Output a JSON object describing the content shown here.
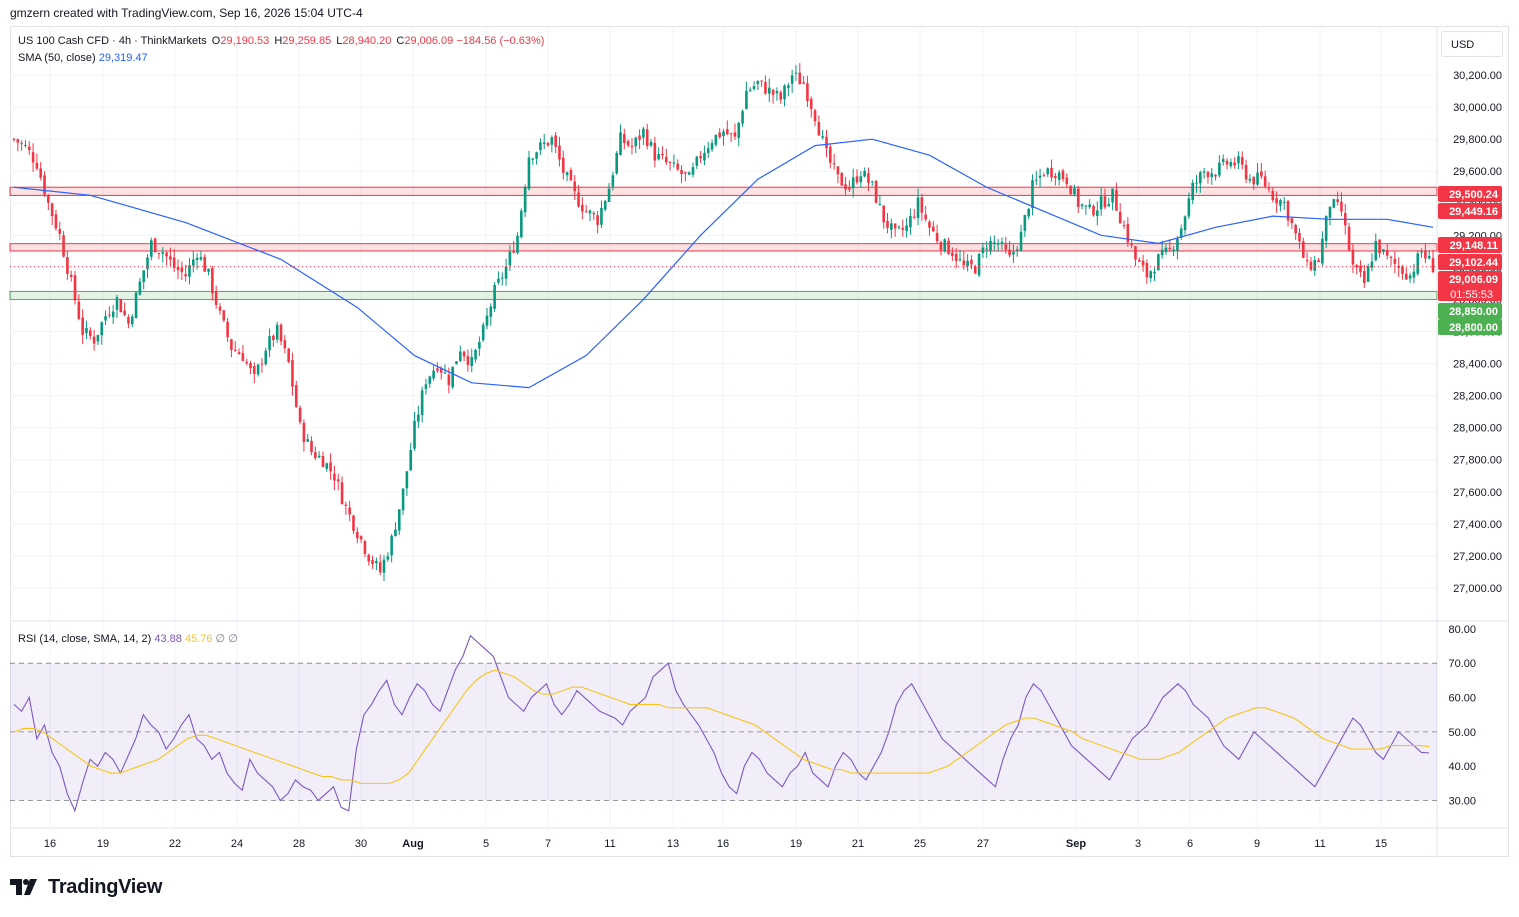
{
  "header": {
    "attribution": "gmzern created with TradingView.com, Sep 16, 2026 15:04 UTC-4"
  },
  "legend": {
    "symbol": "US 100 Cash CFD · 4h · ThinkMarkets",
    "open_label": "O",
    "open": "29,190.53",
    "high_label": "H",
    "high": "29,259.85",
    "low_label": "L",
    "low": "28,940.20",
    "close_label": "C",
    "close": "29,006.09",
    "change": "−184.56 (−0.63%)",
    "sma_label": "SMA (50, close)",
    "sma_value": "29,319.47"
  },
  "rsi_legend": {
    "label": "RSI (14, close, SMA, 14, 2)",
    "rsi": "43.88",
    "rsi_sma": "45.76",
    "extra1": "∅",
    "extra2": "∅"
  },
  "currency": "USD",
  "footer": {
    "brand": "TradingView",
    "logo_icon": "tradingview-logo-icon"
  },
  "colors": {
    "up": "#089981",
    "down": "#f23645",
    "sma": "#2962ff",
    "rsi": "#7e57c2",
    "rsi_sma": "#f7c51a",
    "zone_red": "#f23645",
    "zone_green": "#4caf50"
  },
  "chart_data": [
    {
      "type": "candlestick",
      "title": "US 100 Cash CFD · 4h · ThinkMarkets",
      "ylim": [
        26800,
        30500
      ],
      "y_ticks": [
        "30,200.00",
        "30,000.00",
        "29,800.00",
        "29,600.00",
        "29,400.00",
        "29,200.00",
        "29,000.00",
        "28,800.00",
        "28,600.00",
        "28,400.00",
        "28,200.00",
        "28,000.00",
        "27,800.00",
        "27,600.00",
        "27,400.00",
        "27,200.00",
        "27,000.00"
      ],
      "x_ticks": [
        "16",
        "19",
        "22",
        "24",
        "28",
        "30",
        "Aug",
        "5",
        "7",
        "11",
        "13",
        "16",
        "19",
        "21",
        "25",
        "27",
        "Sep",
        "3",
        "6",
        "9",
        "11",
        "15"
      ],
      "price_levels": [
        {
          "label": "29,500.24",
          "value": 29500.24,
          "color": "#f23645"
        },
        {
          "label": "29,449.16",
          "value": 29449.16,
          "color": "#f23645"
        },
        {
          "label": "29,148.11",
          "value": 29148.11,
          "color": "#f23645"
        },
        {
          "label": "29,102.44",
          "value": 29102.44,
          "color": "#f23645"
        },
        {
          "label": "29,006.09",
          "value": 29006.09,
          "color": "#f23645",
          "sub": "01:55:53"
        },
        {
          "label": "28,850.00",
          "value": 28850,
          "color": "#4caf50"
        },
        {
          "label": "28,800.00",
          "value": 28800,
          "color": "#4caf50"
        }
      ],
      "zones": [
        {
          "from": 29449.16,
          "to": 29500.24,
          "color": "#f23645"
        },
        {
          "from": 29102.44,
          "to": 29148.11,
          "color": "#f23645"
        },
        {
          "from": 28800,
          "to": 28850,
          "color": "#4caf50"
        }
      ],
      "close_path": [
        [
          0,
          29800
        ],
        [
          3,
          29750
        ],
        [
          6,
          29650
        ],
        [
          9,
          29400
        ],
        [
          12,
          29200
        ],
        [
          15,
          28900
        ],
        [
          18,
          28600
        ],
        [
          21,
          28550
        ],
        [
          24,
          28700
        ],
        [
          27,
          28800
        ],
        [
          30,
          28650
        ],
        [
          33,
          28900
        ],
        [
          36,
          29150
        ],
        [
          39,
          29100
        ],
        [
          42,
          29000
        ],
        [
          45,
          28950
        ],
        [
          48,
          29100
        ],
        [
          51,
          28950
        ],
        [
          54,
          28700
        ],
        [
          57,
          28500
        ],
        [
          60,
          28450
        ],
        [
          63,
          28300
        ],
        [
          66,
          28500
        ],
        [
          69,
          28600
        ],
        [
          72,
          28400
        ],
        [
          75,
          28000
        ],
        [
          78,
          27850
        ],
        [
          81,
          27800
        ],
        [
          84,
          27700
        ],
        [
          87,
          27500
        ],
        [
          90,
          27350
        ],
        [
          93,
          27200
        ],
        [
          96,
          27100
        ],
        [
          99,
          27300
        ],
        [
          102,
          27600
        ],
        [
          105,
          28000
        ],
        [
          108,
          28300
        ],
        [
          111,
          28400
        ],
        [
          114,
          28300
        ],
        [
          117,
          28500
        ],
        [
          120,
          28400
        ],
        [
          123,
          28600
        ],
        [
          126,
          28850
        ],
        [
          129,
          29000
        ],
        [
          132,
          29200
        ],
        [
          135,
          29700
        ],
        [
          138,
          29750
        ],
        [
          141,
          29800
        ],
        [
          144,
          29600
        ],
        [
          147,
          29450
        ],
        [
          150,
          29350
        ],
        [
          153,
          29300
        ],
        [
          156,
          29500
        ],
        [
          159,
          29800
        ],
        [
          162,
          29750
        ],
        [
          165,
          29850
        ],
        [
          168,
          29700
        ],
        [
          171,
          29650
        ],
        [
          174,
          29600
        ],
        [
          177,
          29550
        ],
        [
          180,
          29700
        ],
        [
          183,
          29800
        ],
        [
          186,
          29850
        ],
        [
          189,
          29800
        ],
        [
          192,
          30100
        ],
        [
          195,
          30150
        ],
        [
          198,
          30100
        ],
        [
          201,
          30050
        ],
        [
          204,
          30200
        ],
        [
          207,
          30150
        ],
        [
          210,
          29950
        ],
        [
          213,
          29700
        ],
        [
          216,
          29550
        ],
        [
          219,
          29500
        ],
        [
          222,
          29600
        ],
        [
          225,
          29500
        ],
        [
          228,
          29300
        ],
        [
          231,
          29200
        ],
        [
          234,
          29250
        ],
        [
          237,
          29400
        ],
        [
          240,
          29250
        ],
        [
          243,
          29150
        ],
        [
          246,
          29100
        ],
        [
          249,
          29000
        ],
        [
          252,
          29000
        ],
        [
          255,
          29150
        ],
        [
          258,
          29150
        ],
        [
          261,
          29050
        ],
        [
          264,
          29200
        ],
        [
          267,
          29500
        ],
        [
          270,
          29600
        ],
        [
          273,
          29600
        ],
        [
          276,
          29550
        ],
        [
          279,
          29400
        ],
        [
          282,
          29350
        ],
        [
          285,
          29400
        ],
        [
          288,
          29450
        ],
        [
          291,
          29250
        ],
        [
          294,
          29050
        ],
        [
          297,
          28950
        ],
        [
          300,
          29050
        ],
        [
          303,
          29100
        ],
        [
          306,
          29250
        ],
        [
          309,
          29500
        ],
        [
          312,
          29600
        ],
        [
          315,
          29600
        ],
        [
          318,
          29650
        ],
        [
          321,
          29650
        ],
        [
          324,
          29550
        ],
        [
          327,
          29550
        ],
        [
          330,
          29450
        ],
        [
          333,
          29400
        ],
        [
          336,
          29200
        ],
        [
          339,
          29000
        ],
        [
          342,
          29050
        ],
        [
          345,
          29400
        ],
        [
          348,
          29350
        ],
        [
          351,
          29000
        ],
        [
          354,
          28900
        ],
        [
          357,
          29150
        ],
        [
          360,
          29050
        ],
        [
          363,
          29000
        ],
        [
          366,
          28950
        ],
        [
          369,
          29100
        ],
        [
          372,
          29006
        ]
      ],
      "sma50": [
        [
          0,
          29500
        ],
        [
          20,
          29450
        ],
        [
          45,
          29280
        ],
        [
          70,
          29050
        ],
        [
          90,
          28750
        ],
        [
          105,
          28450
        ],
        [
          120,
          28280
        ],
        [
          135,
          28250
        ],
        [
          150,
          28450
        ],
        [
          165,
          28800
        ],
        [
          180,
          29200
        ],
        [
          195,
          29550
        ],
        [
          210,
          29760
        ],
        [
          225,
          29800
        ],
        [
          240,
          29700
        ],
        [
          255,
          29500
        ],
        [
          270,
          29350
        ],
        [
          285,
          29200
        ],
        [
          300,
          29150
        ],
        [
          315,
          29250
        ],
        [
          330,
          29320
        ],
        [
          345,
          29300
        ],
        [
          360,
          29300
        ],
        [
          372,
          29250
        ]
      ]
    },
    {
      "type": "line",
      "title": "RSI (14, close, SMA, 14, 2)",
      "ylim": [
        22,
        82
      ],
      "y_ticks": [
        "80.00",
        "70.00",
        "60.00",
        "50.00",
        "40.00",
        "30.00"
      ],
      "levels": [
        70,
        50,
        30
      ],
      "series": [
        {
          "name": "RSI",
          "color": "#7e57c2",
          "values": [
            58,
            56,
            60,
            48,
            52,
            44,
            40,
            32,
            27,
            35,
            42,
            40,
            44,
            42,
            38,
            43,
            48,
            55,
            52,
            50,
            45,
            48,
            52,
            55,
            48,
            46,
            42,
            44,
            38,
            35,
            33,
            42,
            38,
            36,
            34,
            30,
            32,
            36,
            34,
            33,
            30,
            32,
            34,
            28,
            27,
            45,
            55,
            58,
            62,
            65,
            58,
            55,
            60,
            64,
            62,
            58,
            56,
            62,
            68,
            72,
            78,
            76,
            74,
            72,
            66,
            60,
            58,
            56,
            60,
            62,
            64,
            58,
            55,
            58,
            62,
            60,
            58,
            56,
            55,
            54,
            52,
            56,
            58,
            60,
            66,
            68,
            70,
            62,
            58,
            55,
            52,
            48,
            44,
            38,
            34,
            32,
            40,
            44,
            42,
            38,
            36,
            34,
            38,
            40,
            44,
            38,
            36,
            34,
            40,
            44,
            42,
            38,
            36,
            40,
            44,
            50,
            58,
            62,
            64,
            60,
            56,
            52,
            48,
            46,
            44,
            42,
            40,
            38,
            36,
            34,
            42,
            48,
            52,
            60,
            64,
            62,
            58,
            54,
            50,
            46,
            44,
            42,
            40,
            38,
            36,
            40,
            44,
            48,
            50,
            52,
            56,
            60,
            62,
            64,
            62,
            58,
            56,
            54,
            50,
            46,
            44,
            42,
            46,
            50,
            48,
            46,
            44,
            42,
            40,
            38,
            36,
            34,
            38,
            42,
            46,
            50,
            54,
            52,
            48,
            44,
            42,
            46,
            50,
            48,
            46,
            44,
            43.88
          ]
        },
        {
          "name": "RSI-based MA",
          "color": "#f7c51a",
          "values": [
            50,
            51,
            51,
            50,
            48,
            46,
            44,
            42,
            40,
            39,
            38,
            38,
            39,
            40,
            41,
            42,
            44,
            46,
            48,
            49,
            49,
            48,
            47,
            46,
            45,
            44,
            43,
            42,
            41,
            40,
            39,
            38,
            37,
            37,
            36,
            36,
            35,
            35,
            35,
            35,
            36,
            38,
            42,
            46,
            50,
            54,
            58,
            62,
            65,
            67,
            68,
            67,
            66,
            64,
            62,
            61,
            61,
            62,
            63,
            63,
            62,
            61,
            60,
            59,
            58,
            58,
            58,
            58,
            57,
            57,
            57,
            57,
            57,
            56,
            55,
            54,
            53,
            52,
            50,
            48,
            46,
            44,
            42,
            41,
            40,
            39,
            39,
            38,
            38,
            38,
            38,
            38,
            38,
            38,
            38,
            38,
            39,
            40,
            42,
            44,
            46,
            48,
            50,
            52,
            53,
            54,
            54,
            53,
            52,
            51,
            50,
            48,
            47,
            46,
            45,
            44,
            43,
            42,
            42,
            42,
            43,
            44,
            46,
            48,
            50,
            52,
            54,
            55,
            56,
            57,
            57,
            56,
            55,
            54,
            52,
            50,
            48,
            47,
            46,
            45,
            45,
            45,
            45,
            46,
            46,
            46,
            46,
            45.76
          ]
        }
      ]
    }
  ]
}
